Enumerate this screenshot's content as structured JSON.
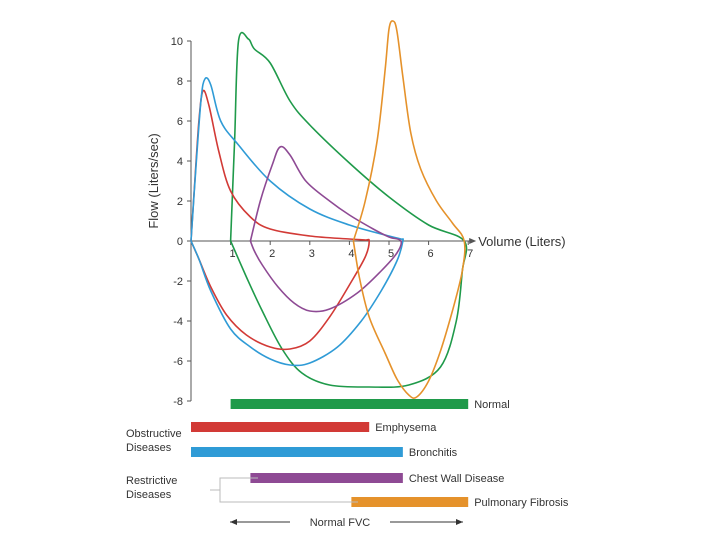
{
  "chart_data": {
    "type": "line",
    "title": "",
    "xlabel": "Volume (Liters)",
    "ylabel": "Flow (Liters/sec)",
    "xlim": [
      0,
      7
    ],
    "ylim": [
      -8,
      10
    ],
    "x_ticks": [
      1,
      2,
      3,
      4,
      5,
      6,
      7
    ],
    "y_ticks": [
      10,
      8,
      6,
      4,
      2,
      0,
      -2,
      -4,
      -6,
      -8
    ],
    "grid": false,
    "series": [
      {
        "name": "Normal",
        "color": "#1f9a4a",
        "points": [
          [
            1.0,
            0
          ],
          [
            1.1,
            5
          ],
          [
            1.2,
            10
          ],
          [
            1.45,
            10.1
          ],
          [
            1.6,
            9.6
          ],
          [
            2.0,
            8.9
          ],
          [
            2.5,
            7.0
          ],
          [
            3.0,
            5.8
          ],
          [
            4.0,
            3.9
          ],
          [
            5.0,
            2.2
          ],
          [
            6.0,
            0.8
          ],
          [
            6.9,
            0
          ],
          [
            6.85,
            -1.5
          ],
          [
            6.7,
            -4.0
          ],
          [
            6.3,
            -6.3
          ],
          [
            5.5,
            -7.2
          ],
          [
            4.5,
            -7.3
          ],
          [
            3.5,
            -7.2
          ],
          [
            2.8,
            -6.6
          ],
          [
            2.3,
            -5.4
          ],
          [
            1.8,
            -3.5
          ],
          [
            1.4,
            -1.8
          ],
          [
            1.0,
            0
          ]
        ]
      },
      {
        "name": "Emphysema",
        "color": "#d23a36",
        "points": [
          [
            0.0,
            0
          ],
          [
            0.08,
            2.5
          ],
          [
            0.2,
            6.0
          ],
          [
            0.3,
            7.5
          ],
          [
            0.45,
            6.8
          ],
          [
            0.7,
            4.5
          ],
          [
            1.0,
            2.5
          ],
          [
            1.5,
            1.2
          ],
          [
            2.0,
            0.6
          ],
          [
            3.0,
            0.25
          ],
          [
            4.0,
            0.1
          ],
          [
            4.4,
            0.05
          ],
          [
            4.5,
            0
          ],
          [
            4.4,
            -0.8
          ],
          [
            4.0,
            -2.2
          ],
          [
            3.5,
            -3.8
          ],
          [
            3.0,
            -5.0
          ],
          [
            2.5,
            -5.4
          ],
          [
            2.0,
            -5.3
          ],
          [
            1.4,
            -4.7
          ],
          [
            0.9,
            -3.7
          ],
          [
            0.5,
            -2.3
          ],
          [
            0.2,
            -0.9
          ],
          [
            0.0,
            0
          ]
        ]
      },
      {
        "name": "Bronchitis",
        "color": "#2f9bd6",
        "points": [
          [
            0.0,
            0
          ],
          [
            0.1,
            3.0
          ],
          [
            0.25,
            7.0
          ],
          [
            0.35,
            8.1
          ],
          [
            0.5,
            7.8
          ],
          [
            0.75,
            6.0
          ],
          [
            1.2,
            4.8
          ],
          [
            2.0,
            3.0
          ],
          [
            3.0,
            1.6
          ],
          [
            4.0,
            0.8
          ],
          [
            5.0,
            0.25
          ],
          [
            5.3,
            0.1
          ],
          [
            5.35,
            0
          ],
          [
            5.2,
            -1.0
          ],
          [
            4.8,
            -2.5
          ],
          [
            4.3,
            -4.0
          ],
          [
            3.7,
            -5.3
          ],
          [
            3.0,
            -6.1
          ],
          [
            2.5,
            -6.2
          ],
          [
            2.0,
            -5.9
          ],
          [
            1.5,
            -5.3
          ],
          [
            1.0,
            -4.4
          ],
          [
            0.5,
            -2.5
          ],
          [
            0.2,
            -0.9
          ],
          [
            0.0,
            0
          ]
        ]
      },
      {
        "name": "Chest Wall Disease",
        "color": "#8e4a94",
        "points": [
          [
            1.5,
            0
          ],
          [
            1.75,
            2.0
          ],
          [
            2.05,
            3.8
          ],
          [
            2.25,
            4.7
          ],
          [
            2.5,
            4.3
          ],
          [
            2.9,
            3.0
          ],
          [
            3.5,
            2.0
          ],
          [
            4.0,
            1.3
          ],
          [
            4.6,
            0.6
          ],
          [
            5.0,
            0.2
          ],
          [
            5.3,
            0
          ],
          [
            5.2,
            -0.6
          ],
          [
            4.8,
            -1.5
          ],
          [
            4.2,
            -2.6
          ],
          [
            3.5,
            -3.4
          ],
          [
            3.0,
            -3.5
          ],
          [
            2.6,
            -3.1
          ],
          [
            2.2,
            -2.3
          ],
          [
            1.8,
            -1.2
          ],
          [
            1.6,
            -0.5
          ],
          [
            1.5,
            0
          ]
        ]
      },
      {
        "name": "Pulmonary Fibrosis",
        "color": "#e5922b",
        "points": [
          [
            4.1,
            0
          ],
          [
            4.4,
            2.0
          ],
          [
            4.7,
            5.0
          ],
          [
            4.9,
            8.5
          ],
          [
            5.0,
            10.6
          ],
          [
            5.1,
            11.0
          ],
          [
            5.2,
            10.5
          ],
          [
            5.35,
            8.2
          ],
          [
            5.55,
            5.4
          ],
          [
            5.8,
            3.6
          ],
          [
            6.2,
            2.0
          ],
          [
            6.6,
            0.9
          ],
          [
            6.9,
            0
          ],
          [
            6.85,
            -1.5
          ],
          [
            6.6,
            -3.5
          ],
          [
            6.3,
            -5.5
          ],
          [
            6.0,
            -7.0
          ],
          [
            5.7,
            -7.8
          ],
          [
            5.5,
            -7.7
          ],
          [
            5.2,
            -6.9
          ],
          [
            4.9,
            -5.6
          ],
          [
            4.5,
            -3.8
          ],
          [
            4.25,
            -1.8
          ],
          [
            4.1,
            0
          ]
        ]
      }
    ],
    "fvc_bars": [
      {
        "label": "Normal",
        "color": "#1f9a4a",
        "range": [
          1.0,
          7.0
        ]
      },
      {
        "label": "Emphysema",
        "color": "#d23a36",
        "range": [
          0.0,
          4.5
        ]
      },
      {
        "label": "Bronchitis",
        "color": "#2f9bd6",
        "range": [
          0.0,
          5.35
        ]
      },
      {
        "label": "Chest Wall Disease",
        "color": "#8e4a94",
        "range": [
          1.5,
          5.35
        ]
      },
      {
        "label": "Pulmonary Fibrosis",
        "color": "#e5922b",
        "range": [
          4.05,
          7.0
        ]
      }
    ],
    "groups": [
      {
        "label": [
          "Obstructive",
          "Diseases"
        ]
      },
      {
        "label": [
          "Restrictive",
          "Diseases"
        ]
      }
    ],
    "fvc_axis_label": "Normal FVC"
  }
}
